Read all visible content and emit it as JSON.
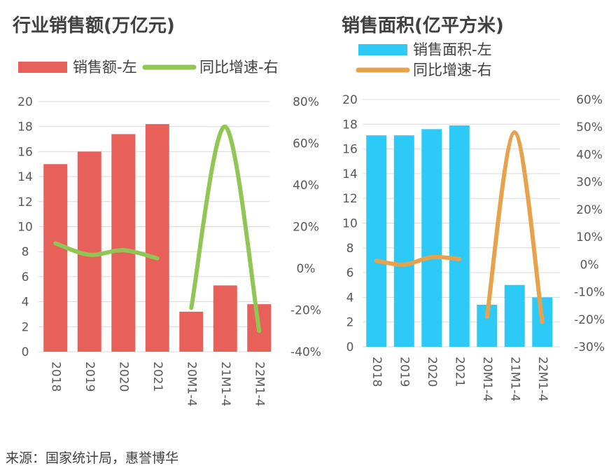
{
  "source": "来源：国家统计局，惠誉博华",
  "colors": {
    "sales_bar": "#E8605A",
    "sales_line": "#92C654",
    "area_bar": "#2DCAF7",
    "area_line": "#E9A24C",
    "grid": "#D9D9D9",
    "text": "#404040"
  },
  "chart_data": [
    {
      "type": "bar",
      "title": "行业销售额(万亿元)",
      "categories": [
        "2018",
        "2019",
        "2020",
        "2021",
        "20M1-4",
        "21M1-4",
        "22M1-4"
      ],
      "ylim": [
        0,
        20
      ],
      "yticks": [
        0,
        2,
        4,
        6,
        8,
        10,
        12,
        14,
        16,
        18,
        20
      ],
      "y2lim": [
        -0.4,
        0.8
      ],
      "y2ticks": [
        "-40%",
        "-20%",
        "0%",
        "20%",
        "40%",
        "60%",
        "80%"
      ],
      "grid": true,
      "legend_position": "top",
      "series": [
        {
          "name": "销售额-左",
          "type": "bar",
          "axis": "left",
          "values": [
            15.0,
            16.0,
            17.4,
            18.2,
            3.2,
            5.3,
            3.8
          ]
        },
        {
          "name": "同比增速-右",
          "type": "line",
          "axis": "right",
          "segments": [
            [
              0,
              1,
              2,
              3
            ],
            [
              4,
              5,
              6
            ]
          ],
          "values": [
            0.12,
            0.065,
            0.087,
            0.048,
            -0.19,
            0.68,
            -0.3
          ]
        }
      ]
    },
    {
      "type": "bar",
      "title": "销售面积(亿平方米)",
      "categories": [
        "2018",
        "2019",
        "2020",
        "2021",
        "20M1-4",
        "21M1-4",
        "22M1-4"
      ],
      "ylim": [
        0,
        20
      ],
      "yticks": [
        0,
        2,
        4,
        6,
        8,
        10,
        12,
        14,
        16,
        18,
        20
      ],
      "y2lim": [
        -0.3,
        0.6
      ],
      "y2ticks": [
        "-30%",
        "-20%",
        "-10%",
        "0%",
        "10%",
        "20%",
        "30%",
        "40%",
        "50%",
        "60%"
      ],
      "grid": true,
      "legend_position": "top",
      "series": [
        {
          "name": "销售面积-左",
          "type": "bar",
          "axis": "left",
          "values": [
            17.1,
            17.1,
            17.6,
            17.9,
            3.4,
            5.0,
            4.0
          ]
        },
        {
          "name": "同比增速-右",
          "type": "line",
          "axis": "right",
          "segments": [
            [
              0,
              1,
              2,
              3
            ],
            [
              4,
              5,
              6
            ]
          ],
          "values": [
            0.013,
            -0.001,
            0.026,
            0.019,
            -0.19,
            0.48,
            -0.21
          ]
        }
      ]
    }
  ]
}
